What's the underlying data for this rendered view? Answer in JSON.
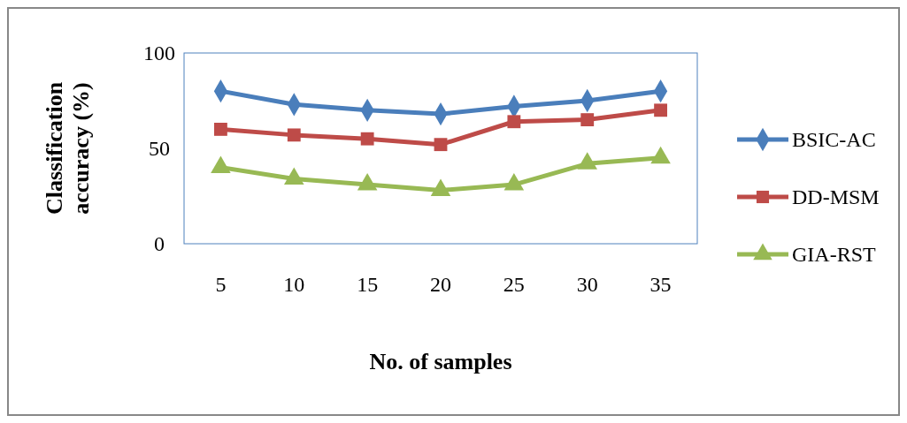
{
  "chart_data": {
    "type": "line",
    "xlabel": "No. of samples",
    "ylabel": "Classification accuracy (%)",
    "categories": [
      "5",
      "10",
      "15",
      "20",
      "25",
      "30",
      "35"
    ],
    "ylim": [
      0,
      100
    ],
    "yticks": [
      0,
      50,
      100
    ],
    "grid": false,
    "legend": "right",
    "series": [
      {
        "name": "BSIC-AC",
        "color": "#4a7ebb",
        "marker": "diamond",
        "values": [
          80,
          73,
          70,
          68,
          72,
          75,
          80
        ]
      },
      {
        "name": "DD-MSM",
        "color": "#be4b48",
        "marker": "square",
        "values": [
          60,
          57,
          55,
          52,
          64,
          65,
          70
        ]
      },
      {
        "name": "GIA-RST",
        "color": "#98b954",
        "marker": "triangle",
        "values": [
          40,
          34,
          31,
          28,
          31,
          42,
          45
        ]
      }
    ]
  }
}
